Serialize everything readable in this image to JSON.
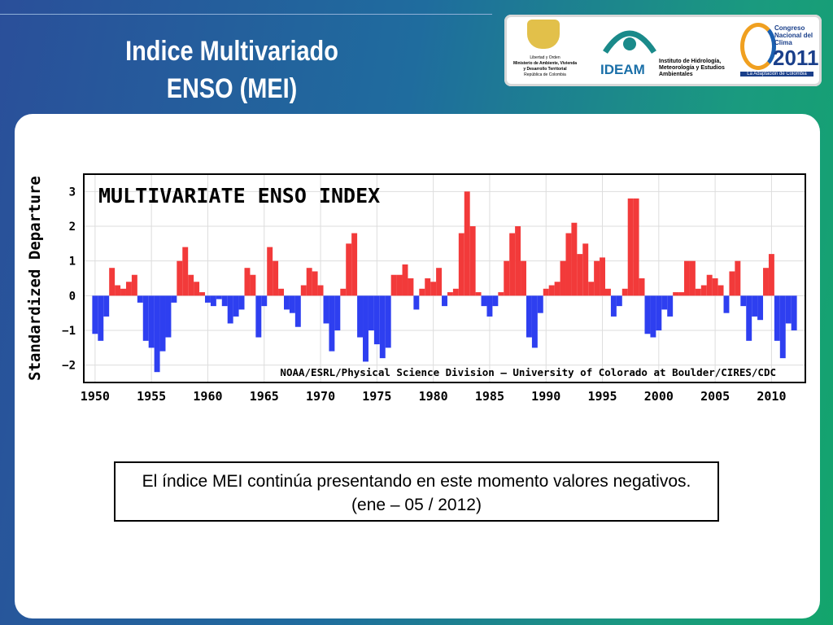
{
  "slide": {
    "title_lines": [
      "Indice Multivariado",
      "ENSO (MEI)"
    ],
    "caption": "El índice MEI continúa presentando en este momento valores negativos.  (ene – 05 / 2012)",
    "logos": {
      "ministry": [
        "Libertad y Orden",
        "Ministerio de Ambiente, Vivienda y Desarrollo Territorial",
        "República de Colombia"
      ],
      "ideam_name": "IDEAM",
      "ideam_full": "Instituto de Hidrología, Meteorología y Estudios Ambientales",
      "congress": "Congreso Nacional del Clima",
      "congress_year": "2011",
      "congress_motto": "La Adaptación de Colombia"
    }
  },
  "chart_data": {
    "type": "bar",
    "title": "MULTIVARIATE ENSO INDEX",
    "ylabel": "Standardized Departure",
    "credit": "NOAA/ESRL/Physical Science Division – University of Colorado at Boulder/CIRES/CDC",
    "positive_color": "#f23a3a",
    "negative_color": "#2e3ff0",
    "xlim": [
      1949,
      2013
    ],
    "ylim": [
      -2.5,
      3.5
    ],
    "xticks": [
      1950,
      1955,
      1960,
      1965,
      1970,
      1975,
      1980,
      1985,
      1990,
      1995,
      2000,
      2005,
      2010
    ],
    "yticks": [
      {
        "value": -2,
        "label": "−2"
      },
      {
        "value": -1,
        "label": "−1"
      },
      0,
      1,
      2,
      3
    ],
    "x": [
      1950,
      1950.5,
      1951,
      1951.5,
      1952,
      1952.5,
      1953,
      1953.5,
      1954,
      1954.5,
      1955,
      1955.5,
      1956,
      1956.5,
      1957,
      1957.5,
      1958,
      1958.5,
      1959,
      1959.5,
      1960,
      1960.5,
      1961,
      1961.5,
      1962,
      1962.5,
      1963,
      1963.5,
      1964,
      1964.5,
      1965,
      1965.5,
      1966,
      1966.5,
      1967,
      1967.5,
      1968,
      1968.5,
      1969,
      1969.5,
      1970,
      1970.5,
      1971,
      1971.5,
      1972,
      1972.5,
      1973,
      1973.5,
      1974,
      1974.5,
      1975,
      1975.5,
      1976,
      1976.5,
      1977,
      1977.5,
      1978,
      1978.5,
      1979,
      1979.5,
      1980,
      1980.5,
      1981,
      1981.5,
      1982,
      1982.5,
      1983,
      1983.5,
      1984,
      1984.5,
      1985,
      1985.5,
      1986,
      1986.5,
      1987,
      1987.5,
      1988,
      1988.5,
      1989,
      1989.5,
      1990,
      1990.5,
      1991,
      1991.5,
      1992,
      1992.5,
      1993,
      1993.5,
      1994,
      1994.5,
      1995,
      1995.5,
      1996,
      1996.5,
      1997,
      1997.5,
      1998,
      1998.5,
      1999,
      1999.5,
      2000,
      2000.5,
      2001,
      2001.5,
      2002,
      2002.5,
      2003,
      2003.5,
      2004,
      2004.5,
      2005,
      2005.5,
      2006,
      2006.5,
      2007,
      2007.5,
      2008,
      2008.5,
      2009,
      2009.5,
      2010,
      2010.5,
      2011,
      2011.5,
      2012
    ],
    "values": [
      -1.1,
      -1.3,
      -0.6,
      0.8,
      0.3,
      0.2,
      0.4,
      0.6,
      -0.2,
      -1.3,
      -1.5,
      -2.2,
      -1.6,
      -1.2,
      -0.2,
      1.0,
      1.4,
      0.6,
      0.4,
      0.1,
      -0.2,
      -0.3,
      -0.1,
      -0.3,
      -0.8,
      -0.6,
      -0.4,
      0.8,
      0.6,
      -1.2,
      -0.3,
      1.4,
      1.0,
      0.2,
      -0.4,
      -0.5,
      -0.9,
      0.3,
      0.8,
      0.7,
      0.3,
      -0.8,
      -1.6,
      -1.0,
      0.2,
      1.5,
      1.8,
      -1.2,
      -1.9,
      -1.0,
      -1.4,
      -1.8,
      -1.5,
      0.6,
      0.6,
      0.9,
      0.5,
      -0.4,
      0.2,
      0.5,
      0.4,
      0.8,
      -0.3,
      0.1,
      0.2,
      1.8,
      3.0,
      2.0,
      0.1,
      -0.3,
      -0.6,
      -0.3,
      0.1,
      1.0,
      1.8,
      2.0,
      1.0,
      -1.2,
      -1.5,
      -0.5,
      0.2,
      0.3,
      0.4,
      1.0,
      1.8,
      2.1,
      1.2,
      1.5,
      0.4,
      1.0,
      1.1,
      0.2,
      -0.6,
      -0.3,
      0.2,
      2.8,
      2.8,
      0.5,
      -1.1,
      -1.2,
      -1.0,
      -0.4,
      -0.6,
      0.1,
      0.1,
      1.0,
      1.0,
      0.2,
      0.3,
      0.6,
      0.5,
      0.3,
      -0.5,
      0.7,
      1.0,
      -0.3,
      -1.3,
      -0.6,
      -0.7,
      0.8,
      1.2,
      -1.3,
      -1.8,
      -0.8,
      -1.0
    ]
  }
}
